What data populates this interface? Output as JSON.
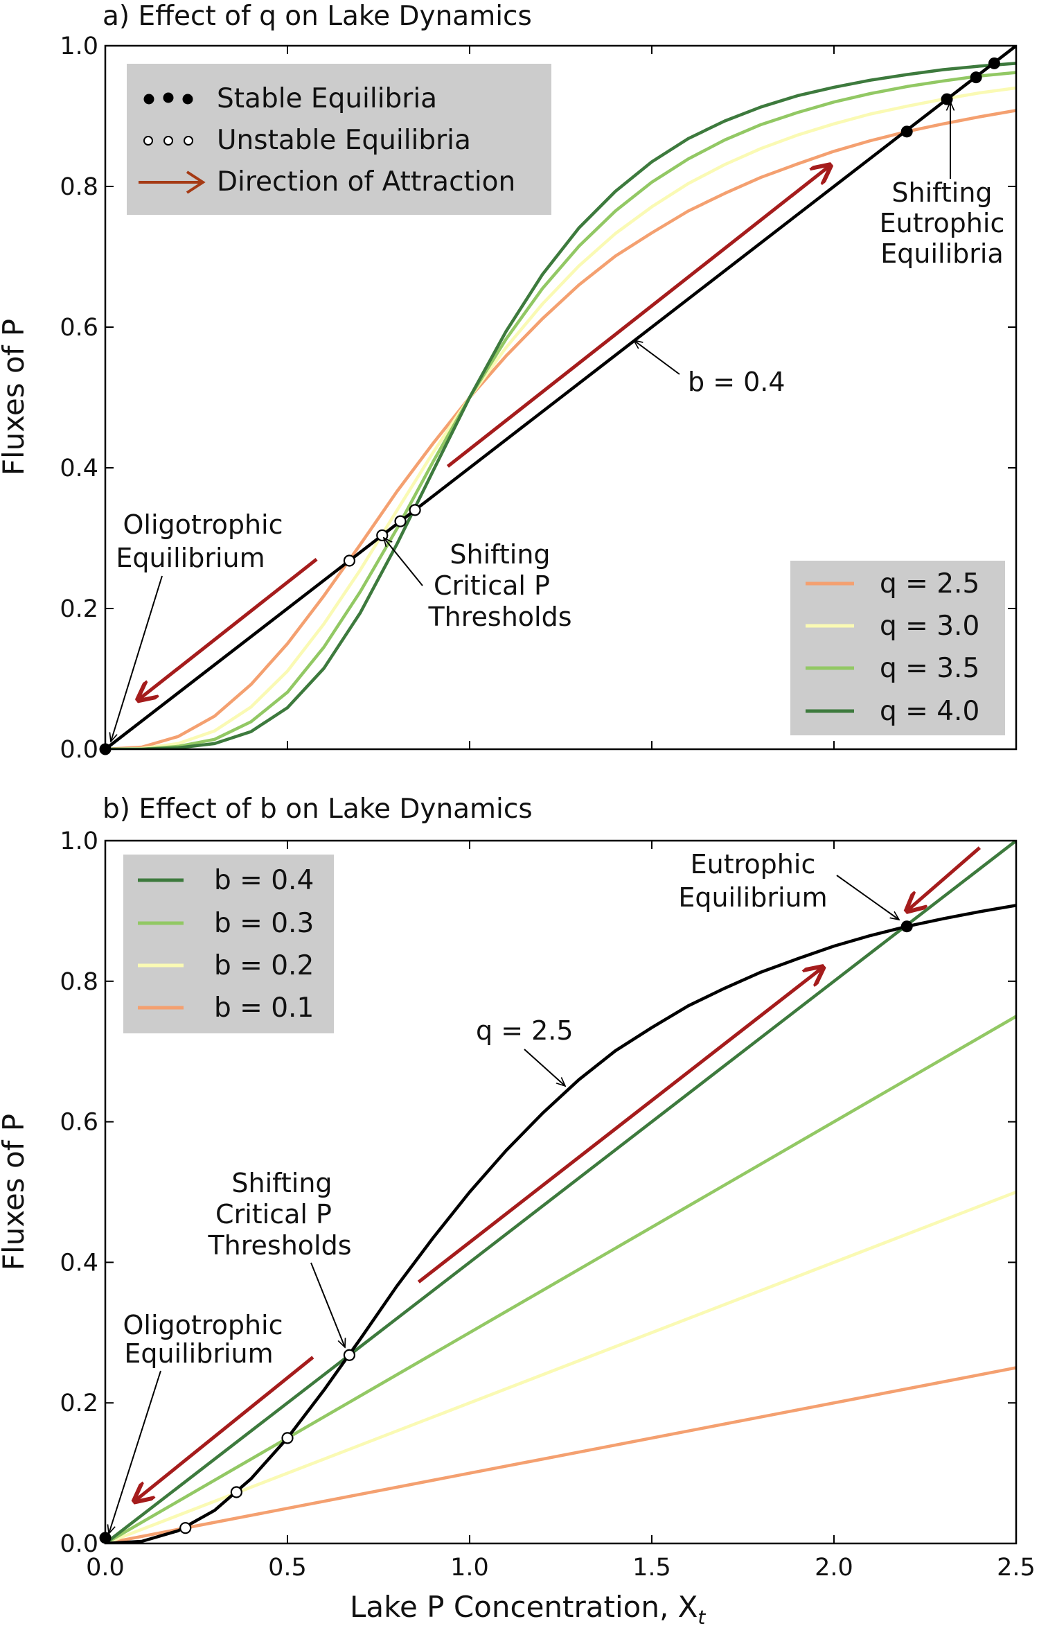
{
  "chart_data": [
    {
      "type": "line",
      "panel": "a",
      "title": "a) Effect of q on Lake Dynamics",
      "xlabel": "",
      "ylabel": "Fluxes of P",
      "xlim": [
        0.0,
        2.5
      ],
      "ylim": [
        0.0,
        1.0
      ],
      "xticks": [
        "0.0",
        "0.5",
        "1.0",
        "1.5",
        "2.0",
        "2.5"
      ],
      "yticks": [
        "0.0",
        "0.2",
        "0.4",
        "0.6",
        "0.8",
        "1.0"
      ],
      "x": [
        0.0,
        0.1,
        0.2,
        0.3,
        0.4,
        0.5,
        0.6,
        0.7,
        0.8,
        0.9,
        1.0,
        1.1,
        1.2,
        1.3,
        1.4,
        1.5,
        1.6,
        1.7,
        1.8,
        1.9,
        2.0,
        2.1,
        2.2,
        2.3,
        2.4,
        2.5
      ],
      "series": [
        {
          "name": "q = 2.5",
          "color": "#f4a070",
          "values": [
            0.0,
            0.003,
            0.018,
            0.047,
            0.092,
            0.15,
            0.218,
            0.291,
            0.366,
            0.435,
            0.5,
            0.559,
            0.612,
            0.66,
            0.701,
            0.734,
            0.765,
            0.79,
            0.813,
            0.832,
            0.85,
            0.865,
            0.878,
            0.889,
            0.899,
            0.908
          ]
        },
        {
          "name": "q = 3.0",
          "color": "#fafab4",
          "values": [
            0.0,
            0.001,
            0.008,
            0.026,
            0.06,
            0.111,
            0.178,
            0.255,
            0.339,
            0.422,
            0.5,
            0.571,
            0.633,
            0.687,
            0.733,
            0.771,
            0.804,
            0.831,
            0.854,
            0.873,
            0.889,
            0.903,
            0.914,
            0.924,
            0.933,
            0.94
          ]
        },
        {
          "name": "q = 3.5",
          "color": "#92c864",
          "values": [
            0.0,
            0.0,
            0.004,
            0.014,
            0.039,
            0.081,
            0.145,
            0.224,
            0.313,
            0.409,
            0.5,
            0.583,
            0.655,
            0.715,
            0.765,
            0.806,
            0.839,
            0.866,
            0.888,
            0.905,
            0.92,
            0.932,
            0.942,
            0.95,
            0.957,
            0.962
          ]
        },
        {
          "name": "q = 4.0",
          "color": "#3d7a3d",
          "values": [
            0.0,
            0.0,
            0.002,
            0.008,
            0.025,
            0.059,
            0.115,
            0.194,
            0.291,
            0.396,
            0.5,
            0.594,
            0.675,
            0.741,
            0.793,
            0.835,
            0.868,
            0.893,
            0.913,
            0.929,
            0.941,
            0.951,
            0.959,
            0.966,
            0.971,
            0.975
          ]
        },
        {
          "name": "b = 0.4",
          "color": "#000000",
          "x": [
            0.0,
            2.5
          ],
          "values": [
            0.0,
            1.0
          ]
        }
      ],
      "stable_equilibria": [
        [
          0.0,
          0.0
        ],
        [
          2.2,
          0.878
        ],
        [
          2.31,
          0.924
        ],
        [
          2.39,
          0.955
        ],
        [
          2.44,
          0.975
        ]
      ],
      "unstable_equilibria": [
        [
          0.67,
          0.268
        ],
        [
          0.76,
          0.304
        ],
        [
          0.81,
          0.324
        ],
        [
          0.85,
          0.34
        ]
      ],
      "legend_markers": {
        "title": "",
        "entries": [
          "Stable Equilibria",
          "Unstable Equilibria",
          "Direction of Attraction"
        ],
        "placement": "top-left"
      },
      "legend_lines_placement": "bottom-right",
      "annotations": [
        {
          "text": [
            "Shifting",
            "Eutrophic",
            "Equilibria"
          ]
        },
        {
          "text": [
            "b = 0.4"
          ]
        },
        {
          "text": [
            "Oligotrophic",
            "Equilibrium"
          ]
        },
        {
          "text": [
            "Shifting",
            "Critical P",
            "Thresholds"
          ]
        }
      ],
      "arrows": [
        {
          "from": [
            0.94,
            0.402
          ],
          "to": [
            1.99,
            0.83
          ]
        },
        {
          "from": [
            0.58,
            0.27
          ],
          "to": [
            0.09,
            0.07
          ]
        }
      ],
      "arrow_color": "#a51c1c"
    },
    {
      "type": "line",
      "panel": "b",
      "title": "b) Effect of b on Lake Dynamics",
      "xlabel": "Lake P Concentration, X",
      "xlabel_sub": "t",
      "ylabel": "Fluxes of P",
      "xlim": [
        0.0,
        2.5
      ],
      "ylim": [
        0.0,
        1.0
      ],
      "xticks": [
        "0.0",
        "0.5",
        "1.0",
        "1.5",
        "2.0",
        "2.5"
      ],
      "yticks": [
        "0.0",
        "0.2",
        "0.4",
        "0.6",
        "0.8",
        "1.0"
      ],
      "series": [
        {
          "name": "b = 0.4",
          "color": "#3d7a3d",
          "x": [
            0.0,
            2.5
          ],
          "values": [
            0.0,
            1.0
          ]
        },
        {
          "name": "b = 0.3",
          "color": "#92c864",
          "x": [
            0.0,
            2.5
          ],
          "values": [
            0.0,
            0.75
          ]
        },
        {
          "name": "b = 0.2",
          "color": "#fafab4",
          "x": [
            0.0,
            2.5
          ],
          "values": [
            0.0,
            0.5
          ]
        },
        {
          "name": "b = 0.1",
          "color": "#f4a070",
          "x": [
            0.0,
            2.5
          ],
          "values": [
            0.0,
            0.25
          ]
        },
        {
          "name": "q = 2.5",
          "color": "#000000",
          "x": [
            0.0,
            0.1,
            0.2,
            0.3,
            0.4,
            0.5,
            0.6,
            0.7,
            0.8,
            0.9,
            1.0,
            1.1,
            1.2,
            1.3,
            1.4,
            1.5,
            1.6,
            1.7,
            1.8,
            1.9,
            2.0,
            2.1,
            2.2,
            2.3,
            2.4,
            2.5
          ],
          "values": [
            0.0,
            0.003,
            0.018,
            0.047,
            0.092,
            0.15,
            0.218,
            0.291,
            0.366,
            0.435,
            0.5,
            0.559,
            0.612,
            0.66,
            0.701,
            0.734,
            0.765,
            0.79,
            0.813,
            0.832,
            0.85,
            0.865,
            0.878,
            0.889,
            0.899,
            0.908
          ]
        }
      ],
      "stable_equilibria": [
        [
          0.0,
          0.008
        ],
        [
          2.2,
          0.878
        ]
      ],
      "unstable_equilibria": [
        [
          0.67,
          0.268
        ],
        [
          0.5,
          0.15
        ],
        [
          0.36,
          0.073
        ],
        [
          0.22,
          0.022
        ]
      ],
      "legend_lines_placement": "top-left",
      "annotations": [
        {
          "text": [
            "Eutrophic",
            "Equilibrium"
          ]
        },
        {
          "text": [
            "q = 2.5"
          ]
        },
        {
          "text": [
            "Shifting",
            "Critical P",
            "Thresholds"
          ]
        },
        {
          "text": [
            "Oligotrophic",
            "Equilibrium"
          ]
        }
      ],
      "arrows": [
        {
          "from": [
            0.86,
            0.372
          ],
          "to": [
            1.97,
            0.82
          ]
        },
        {
          "from": [
            2.4,
            0.99
          ],
          "to": [
            2.2,
            0.9
          ]
        },
        {
          "from": [
            0.57,
            0.265
          ],
          "to": [
            0.08,
            0.06
          ]
        }
      ],
      "arrow_color": "#a51c1c"
    }
  ]
}
